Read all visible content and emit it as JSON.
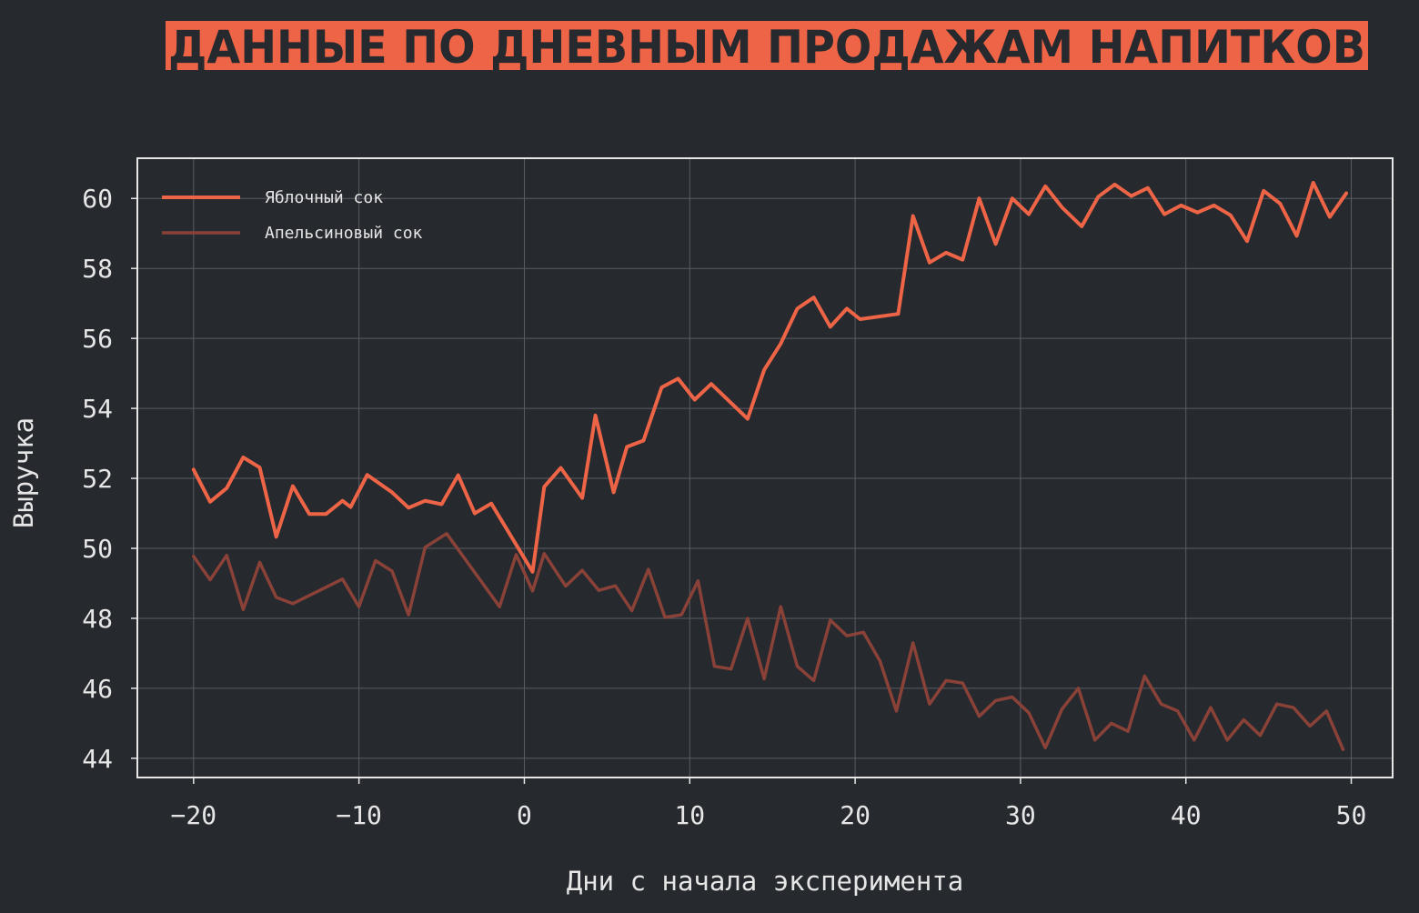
{
  "chart_data": {
    "type": "line",
    "title": "ДАННЫЕ ПО ДНЕВНЫМ ПРОДАЖАМ НАПИТКОВ",
    "xlabel": "Дни с начала эксперимента",
    "ylabel": "Выручка",
    "xlim": [
      -23.4,
      52.5
    ],
    "ylim": [
      43.45,
      61.15
    ],
    "x_ticks": [
      -20,
      -10,
      0,
      10,
      20,
      30,
      40,
      50
    ],
    "y_ticks": [
      44,
      46,
      48,
      50,
      52,
      54,
      56,
      58,
      60
    ],
    "x_tick_labels": [
      "−20",
      "−10",
      "0",
      "10",
      "20",
      "30",
      "40",
      "50"
    ],
    "y_tick_labels": [
      "44",
      "46",
      "48",
      "50",
      "52",
      "54",
      "56",
      "58",
      "60"
    ],
    "grid": true,
    "legend_position": "top-left",
    "colors": {
      "background": "#26292e",
      "accent": "#ee6446",
      "secondary": "#8a4238",
      "frame": "#e6e6e6",
      "grid": "#5a5e64"
    },
    "series": [
      {
        "name": "Яблочный сок",
        "color": "#ee6446",
        "points": [
          [
            -20,
            52.25
          ],
          [
            -19,
            51.33
          ],
          [
            -18,
            51.72
          ],
          [
            -17,
            52.6
          ],
          [
            -16,
            52.31
          ],
          [
            -15,
            50.33
          ],
          [
            -14,
            51.78
          ],
          [
            -13,
            50.98
          ],
          [
            -12,
            50.98
          ],
          [
            -11,
            51.36
          ],
          [
            -10.5,
            51.18
          ],
          [
            -9.5,
            52.1
          ],
          [
            -8,
            51.6
          ],
          [
            -7,
            51.16
          ],
          [
            -6,
            51.36
          ],
          [
            -5,
            51.26
          ],
          [
            -4,
            52.09
          ],
          [
            -3,
            51.0
          ],
          [
            -2,
            51.28
          ],
          [
            0.5,
            49.33
          ],
          [
            1.2,
            51.76
          ],
          [
            2.2,
            52.3
          ],
          [
            3.5,
            51.44
          ],
          [
            4.3,
            53.8
          ],
          [
            5.4,
            51.6
          ],
          [
            6.2,
            52.9
          ],
          [
            7.2,
            53.08
          ],
          [
            8.3,
            54.6
          ],
          [
            9.3,
            54.85
          ],
          [
            10.3,
            54.25
          ],
          [
            11.3,
            54.7
          ],
          [
            13.5,
            53.7
          ],
          [
            14.5,
            55.1
          ],
          [
            15.5,
            55.85
          ],
          [
            16.5,
            56.85
          ],
          [
            17.5,
            57.17
          ],
          [
            18.5,
            56.33
          ],
          [
            19.5,
            56.85
          ],
          [
            20.3,
            56.55
          ],
          [
            22.6,
            56.7
          ],
          [
            23.5,
            59.5
          ],
          [
            24.5,
            58.17
          ],
          [
            25.5,
            58.45
          ],
          [
            26.5,
            58.25
          ],
          [
            27.5,
            60.0
          ],
          [
            28.5,
            58.7
          ],
          [
            29.5,
            60.0
          ],
          [
            30.5,
            59.55
          ],
          [
            31.5,
            60.35
          ],
          [
            32.5,
            59.75
          ],
          [
            33.7,
            59.2
          ],
          [
            34.7,
            60.05
          ],
          [
            35.7,
            60.4
          ],
          [
            36.7,
            60.07
          ],
          [
            37.7,
            60.3
          ],
          [
            38.7,
            59.55
          ],
          [
            39.7,
            59.8
          ],
          [
            40.7,
            59.6
          ],
          [
            41.7,
            59.8
          ],
          [
            42.7,
            59.52
          ],
          [
            43.7,
            58.78
          ],
          [
            44.7,
            60.22
          ],
          [
            45.7,
            59.85
          ],
          [
            46.7,
            58.93
          ],
          [
            47.7,
            60.45
          ],
          [
            48.7,
            59.47
          ],
          [
            49.7,
            60.15
          ]
        ]
      },
      {
        "name": "Апельсиновый сок",
        "color": "#8a4238",
        "points": [
          [
            -20,
            49.77
          ],
          [
            -19,
            49.1
          ],
          [
            -18,
            49.8
          ],
          [
            -17,
            48.25
          ],
          [
            -16,
            49.6
          ],
          [
            -15,
            48.6
          ],
          [
            -14,
            48.42
          ],
          [
            -11,
            49.12
          ],
          [
            -10,
            48.33
          ],
          [
            -9,
            49.65
          ],
          [
            -8,
            49.35
          ],
          [
            -7,
            48.1
          ],
          [
            -6,
            50.03
          ],
          [
            -4.7,
            50.42
          ],
          [
            -1.5,
            48.33
          ],
          [
            -0.5,
            49.82
          ],
          [
            0.5,
            48.78
          ],
          [
            1.2,
            49.85
          ],
          [
            2.5,
            48.92
          ],
          [
            3.5,
            49.37
          ],
          [
            4.5,
            48.8
          ],
          [
            5.5,
            48.93
          ],
          [
            6.5,
            48.22
          ],
          [
            7.5,
            49.4
          ],
          [
            8.5,
            48.03
          ],
          [
            9.5,
            48.1
          ],
          [
            10.5,
            49.07
          ],
          [
            11.5,
            46.63
          ],
          [
            12.5,
            46.55
          ],
          [
            13.5,
            48.0
          ],
          [
            14.5,
            46.27
          ],
          [
            15.5,
            48.33
          ],
          [
            16.5,
            46.63
          ],
          [
            17.5,
            46.22
          ],
          [
            18.5,
            47.95
          ],
          [
            19.5,
            47.5
          ],
          [
            20.5,
            47.6
          ],
          [
            21.5,
            46.78
          ],
          [
            22.5,
            45.35
          ],
          [
            23.5,
            47.3
          ],
          [
            24.5,
            45.55
          ],
          [
            25.5,
            46.22
          ],
          [
            26.5,
            46.15
          ],
          [
            27.5,
            45.2
          ],
          [
            28.5,
            45.65
          ],
          [
            29.5,
            45.75
          ],
          [
            30.5,
            45.3
          ],
          [
            31.5,
            44.3
          ],
          [
            32.5,
            45.4
          ],
          [
            33.5,
            46.0
          ],
          [
            34.5,
            44.52
          ],
          [
            35.5,
            45.0
          ],
          [
            36.5,
            44.77
          ],
          [
            37.5,
            46.35
          ],
          [
            38.5,
            45.55
          ],
          [
            39.5,
            45.35
          ],
          [
            40.5,
            44.52
          ],
          [
            41.5,
            45.45
          ],
          [
            42.5,
            44.52
          ],
          [
            43.5,
            45.1
          ],
          [
            44.5,
            44.65
          ],
          [
            45.5,
            45.55
          ],
          [
            46.5,
            45.45
          ],
          [
            47.5,
            44.92
          ],
          [
            48.5,
            45.35
          ],
          [
            49.5,
            44.25
          ]
        ]
      }
    ]
  }
}
